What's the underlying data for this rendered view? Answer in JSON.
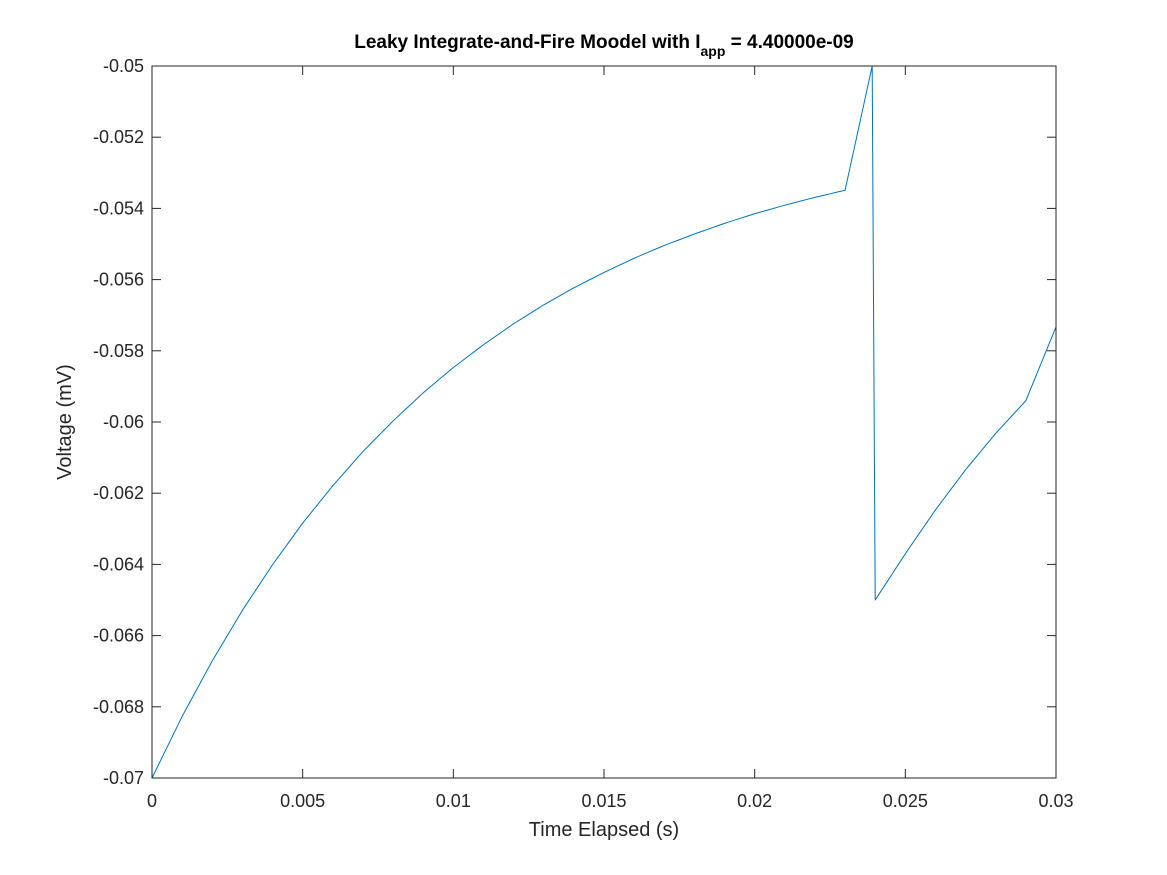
{
  "chart_data": {
    "type": "line",
    "title": {
      "main": "Leaky Integrate-and-Fire Moodel with I",
      "subscript": "app",
      "suffix": " = 4.40000e-09"
    },
    "xlabel": "Time Elapsed (s)",
    "ylabel": "Voltage (mV)",
    "xlim": [
      0,
      0.03
    ],
    "ylim": [
      -0.07,
      -0.05
    ],
    "x_ticks": [
      0,
      0.005,
      0.01,
      0.015,
      0.02,
      0.025,
      0.03
    ],
    "x_tick_labels": [
      "0",
      "0.005",
      "0.01",
      "0.015",
      "0.02",
      "0.025",
      "0.03"
    ],
    "y_ticks": [
      -0.07,
      -0.068,
      -0.066,
      -0.064,
      -0.062,
      -0.06,
      -0.058,
      -0.056,
      -0.054,
      -0.052,
      -0.05
    ],
    "y_tick_labels": [
      "-0.07",
      "-0.068",
      "-0.066",
      "-0.064",
      "-0.062",
      "-0.06",
      "-0.058",
      "-0.056",
      "-0.054",
      "-0.052",
      "-0.05"
    ],
    "grid": false,
    "box": true,
    "series": [
      {
        "color": "#0072bd",
        "x": [
          0,
          0.001,
          0.002,
          0.003,
          0.004,
          0.005,
          0.006,
          0.007,
          0.008,
          0.009,
          0.01,
          0.011,
          0.012,
          0.013,
          0.014,
          0.015,
          0.016,
          0.017,
          0.018,
          0.019,
          0.02,
          0.021,
          0.022,
          0.023,
          0.0239,
          0.024,
          0.025,
          0.026,
          0.027,
          0.028,
          0.029,
          0.03
        ],
        "y": [
          -0.07,
          -0.06827,
          -0.06671,
          -0.06529,
          -0.06401,
          -0.06284,
          -0.06179,
          -0.06083,
          -0.05997,
          -0.05918,
          -0.05847,
          -0.05783,
          -0.05724,
          -0.05671,
          -0.05623,
          -0.0558,
          -0.0554,
          -0.05504,
          -0.05472,
          -0.05442,
          -0.05415,
          -0.05391,
          -0.05369,
          -0.05349,
          -0.05,
          -0.065,
          -0.0637,
          -0.06247,
          -0.06134,
          -0.06032,
          -0.0594,
          -0.05733
        ]
      }
    ]
  }
}
